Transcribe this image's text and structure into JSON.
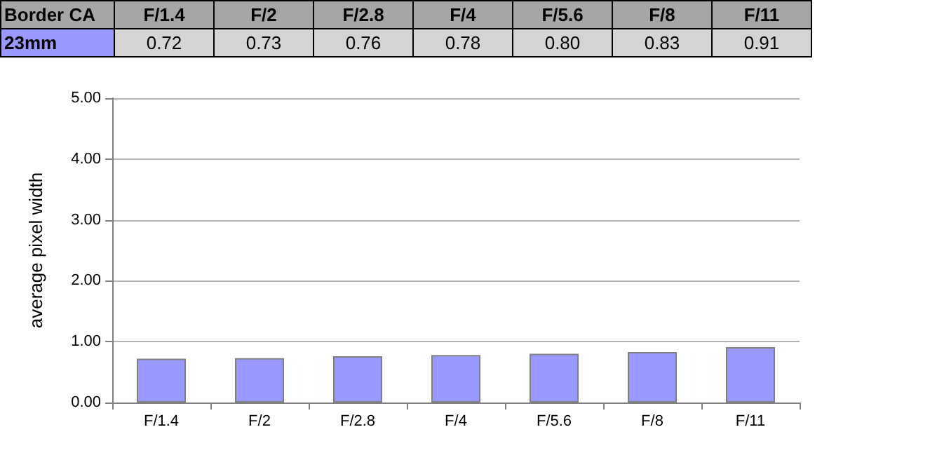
{
  "chart_data": {
    "type": "bar",
    "title": "Border CA",
    "ylabel": "average pixel width",
    "categories": [
      "F/1.4",
      "F/2",
      "F/2.8",
      "F/4",
      "F/5.6",
      "F/8",
      "F/11"
    ],
    "series": [
      {
        "name": "23mm",
        "color": "#9999ff",
        "values": [
          0.72,
          0.73,
          0.76,
          0.78,
          0.8,
          0.83,
          0.91
        ],
        "value_labels": [
          "0.72",
          "0.73",
          "0.76",
          "0.78",
          "0.80",
          "0.83",
          "0.91"
        ]
      }
    ],
    "ylim": [
      0,
      5
    ],
    "yticks": [
      {
        "value": 0,
        "label": "0.00"
      },
      {
        "value": 1,
        "label": "1.00"
      },
      {
        "value": 2,
        "label": "2.00"
      },
      {
        "value": 3,
        "label": "3.00"
      },
      {
        "value": 4,
        "label": "4.00"
      },
      {
        "value": 5,
        "label": "5.00"
      }
    ],
    "grid": "y"
  }
}
